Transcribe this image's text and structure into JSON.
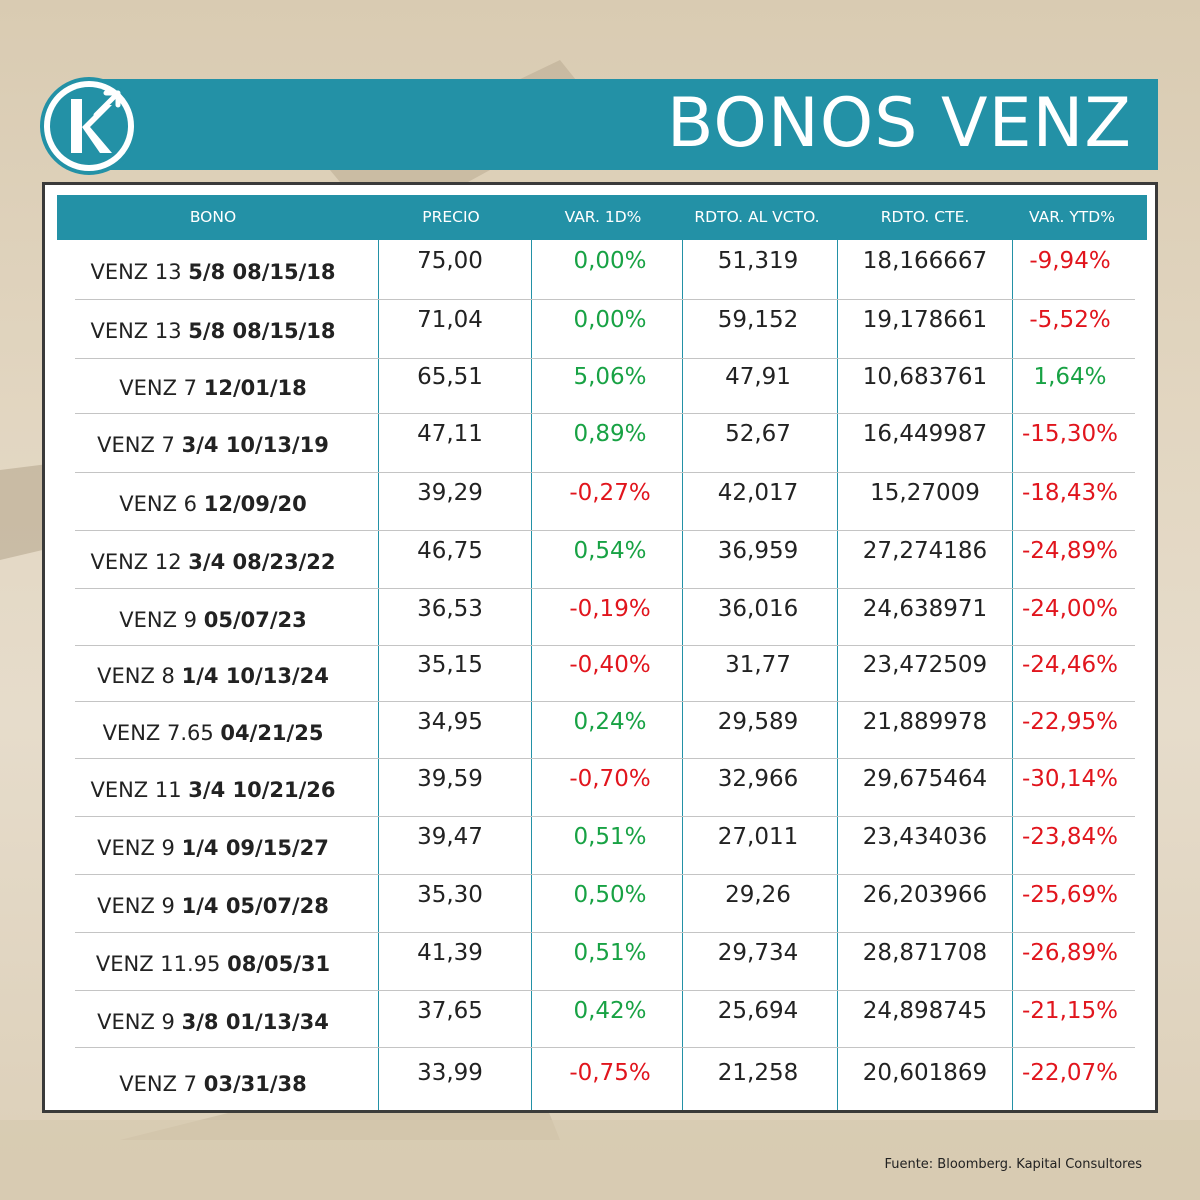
{
  "title": "BONOS VENZ",
  "columns": [
    "BONO",
    "PRECIO",
    "VAR. 1D%",
    "RDTO. AL VCTO.",
    "RDTO. CTE.",
    "VAR. YTD%"
  ],
  "rows": [
    {
      "bond_prefix": "VENZ 13",
      "bond_suffix": "5/8 08/15/18",
      "precio": "75,00",
      "var1d": "0,00%",
      "var1d_sign": "pos",
      "rdto_vcto": "51,319",
      "rdto_cte": "18,166667",
      "var_ytd": "-9,94%",
      "ytd_sign": "neg"
    },
    {
      "bond_prefix": "VENZ 13",
      "bond_suffix": "5/8 08/15/18",
      "precio": "71,04",
      "var1d": "0,00%",
      "var1d_sign": "pos",
      "rdto_vcto": "59,152",
      "rdto_cte": "19,178661",
      "var_ytd": "-5,52%",
      "ytd_sign": "neg"
    },
    {
      "bond_prefix": "VENZ 7",
      "bond_suffix": "12/01/18",
      "precio": "65,51",
      "var1d": "5,06%",
      "var1d_sign": "pos",
      "rdto_vcto": "47,91",
      "rdto_cte": "10,683761",
      "var_ytd": "1,64%",
      "ytd_sign": "pos"
    },
    {
      "bond_prefix": "VENZ 7",
      "bond_suffix": "3/4 10/13/19",
      "precio": "47,11",
      "var1d": "0,89%",
      "var1d_sign": "pos",
      "rdto_vcto": "52,67",
      "rdto_cte": "16,449987",
      "var_ytd": "-15,30%",
      "ytd_sign": "neg"
    },
    {
      "bond_prefix": "VENZ 6",
      "bond_suffix": "12/09/20",
      "precio": "39,29",
      "var1d": "-0,27%",
      "var1d_sign": "neg",
      "rdto_vcto": "42,017",
      "rdto_cte": "15,27009",
      "var_ytd": "-18,43%",
      "ytd_sign": "neg"
    },
    {
      "bond_prefix": "VENZ 12",
      "bond_suffix": "3/4 08/23/22",
      "precio": "46,75",
      "var1d": "0,54%",
      "var1d_sign": "pos",
      "rdto_vcto": "36,959",
      "rdto_cte": "27,274186",
      "var_ytd": "-24,89%",
      "ytd_sign": "neg"
    },
    {
      "bond_prefix": "VENZ 9",
      "bond_suffix": "05/07/23",
      "precio": "36,53",
      "var1d": "-0,19%",
      "var1d_sign": "neg",
      "rdto_vcto": "36,016",
      "rdto_cte": "24,638971",
      "var_ytd": "-24,00%",
      "ytd_sign": "neg"
    },
    {
      "bond_prefix": "VENZ 8",
      "bond_suffix": "1/4 10/13/24",
      "precio": "35,15",
      "var1d": "-0,40%",
      "var1d_sign": "neg",
      "rdto_vcto": "31,77",
      "rdto_cte": "23,472509",
      "var_ytd": "-24,46%",
      "ytd_sign": "neg"
    },
    {
      "bond_prefix": "VENZ 7.65",
      "bond_suffix": "04/21/25",
      "precio": "34,95",
      "var1d": "0,24%",
      "var1d_sign": "pos",
      "rdto_vcto": "29,589",
      "rdto_cte": "21,889978",
      "var_ytd": "-22,95%",
      "ytd_sign": "neg"
    },
    {
      "bond_prefix": "VENZ 11",
      "bond_suffix": "3/4 10/21/26",
      "precio": "39,59",
      "var1d": "-0,70%",
      "var1d_sign": "neg",
      "rdto_vcto": "32,966",
      "rdto_cte": "29,675464",
      "var_ytd": "-30,14%",
      "ytd_sign": "neg"
    },
    {
      "bond_prefix": "VENZ 9",
      "bond_suffix": "1/4 09/15/27",
      "precio": "39,47",
      "var1d": "0,51%",
      "var1d_sign": "pos",
      "rdto_vcto": "27,011",
      "rdto_cte": "23,434036",
      "var_ytd": "-23,84%",
      "ytd_sign": "neg"
    },
    {
      "bond_prefix": "VENZ 9",
      "bond_suffix": "1/4 05/07/28",
      "precio": "35,30",
      "var1d": "0,50%",
      "var1d_sign": "pos",
      "rdto_vcto": "29,26",
      "rdto_cte": "26,203966",
      "var_ytd": "-25,69%",
      "ytd_sign": "neg"
    },
    {
      "bond_prefix": "VENZ 11.95",
      "bond_suffix": "08/05/31",
      "precio": "41,39",
      "var1d": "0,51%",
      "var1d_sign": "pos",
      "rdto_vcto": "29,734",
      "rdto_cte": "28,871708",
      "var_ytd": "-26,89%",
      "ytd_sign": "neg"
    },
    {
      "bond_prefix": "VENZ 9",
      "bond_suffix": "3/8 01/13/34",
      "precio": "37,65",
      "var1d": "0,42%",
      "var1d_sign": "pos",
      "rdto_vcto": "25,694",
      "rdto_cte": "24,898745",
      "var_ytd": "-21,15%",
      "ytd_sign": "neg"
    },
    {
      "bond_prefix": "VENZ 7",
      "bond_suffix": "03/31/38",
      "precio": "33,99",
      "var1d": "-0,75%",
      "var1d_sign": "neg",
      "rdto_vcto": "21,258",
      "rdto_cte": "20,601869",
      "var_ytd": "-22,07%",
      "ytd_sign": "neg"
    }
  ],
  "source": "Fuente: Bloomberg. Kapital Consultores",
  "colors": {
    "accent": "#2391a6",
    "positive": "#18a244",
    "negative": "#e1151d",
    "frame": "#3a3a3a"
  },
  "logo_icon": "kapital-k-arrow-logo"
}
